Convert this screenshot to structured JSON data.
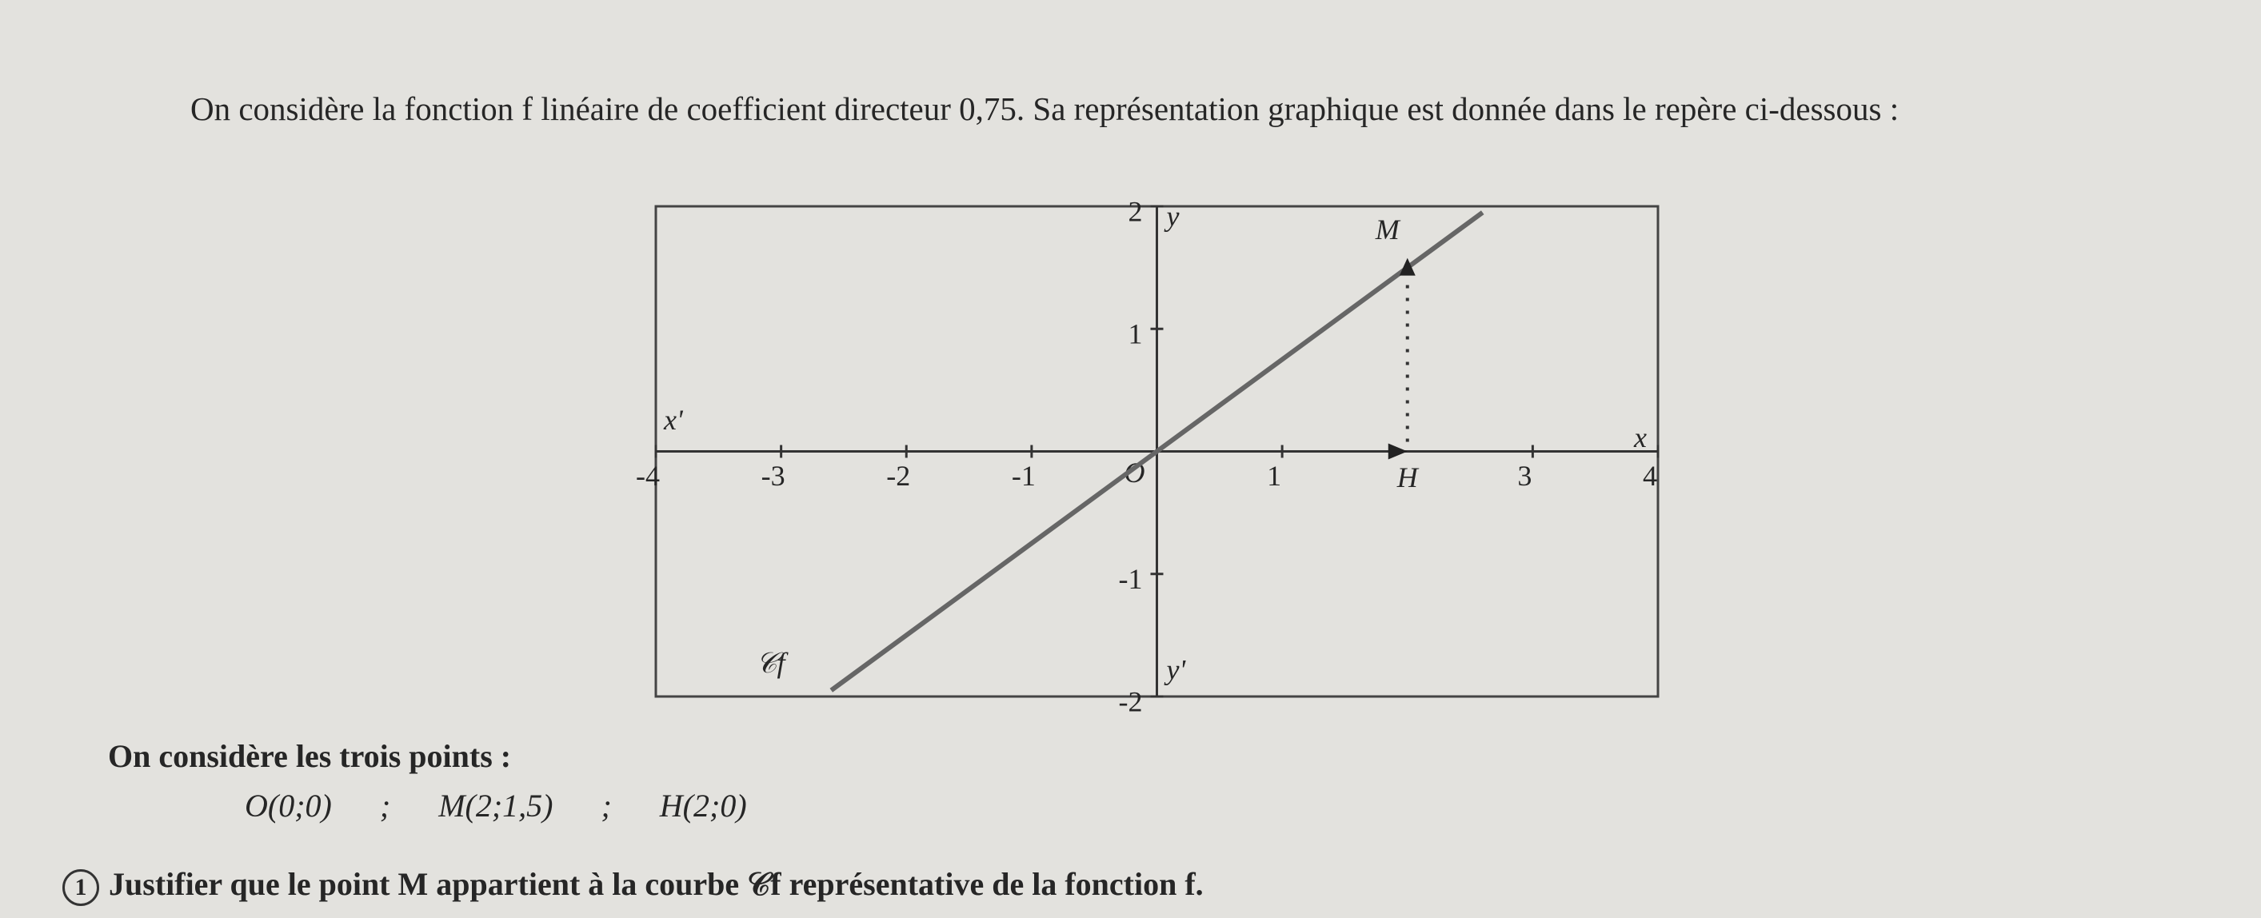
{
  "intro": "On considère la fonction f linéaire de coefficient directeur 0,75. Sa représentation graphique est donnée dans le repère ci-dessous :",
  "chart_data": {
    "type": "line",
    "xlim": [
      -4,
      4
    ],
    "ylim": [
      -2,
      2
    ],
    "xticks": [
      -4,
      -3,
      -2,
      -1,
      1,
      3,
      4
    ],
    "yticks": [
      -2,
      -1,
      1,
      2
    ],
    "series": [
      {
        "x": [
          -2.6,
          2.6
        ],
        "values": [
          -1.95,
          1.95
        ],
        "color": "#666666"
      }
    ],
    "points": [
      {
        "label": "M",
        "x": 2,
        "y": 1.5
      },
      {
        "label": "H",
        "x": 2,
        "y": 0
      }
    ],
    "origin_label": "O",
    "axis_labels": {
      "x": "x",
      "x_neg": "x'",
      "y": "y",
      "y_neg": "y'"
    },
    "curve_label": "𝒞f"
  },
  "points_intro": "On considère les trois points :",
  "points": [
    "O(0;0)",
    "M(2;1,5)",
    "H(2;0)"
  ],
  "points_separator": ";",
  "question": {
    "number": "1",
    "text": "Justifier que le point M appartient à la courbe 𝒞f représentative de la fonction f."
  }
}
